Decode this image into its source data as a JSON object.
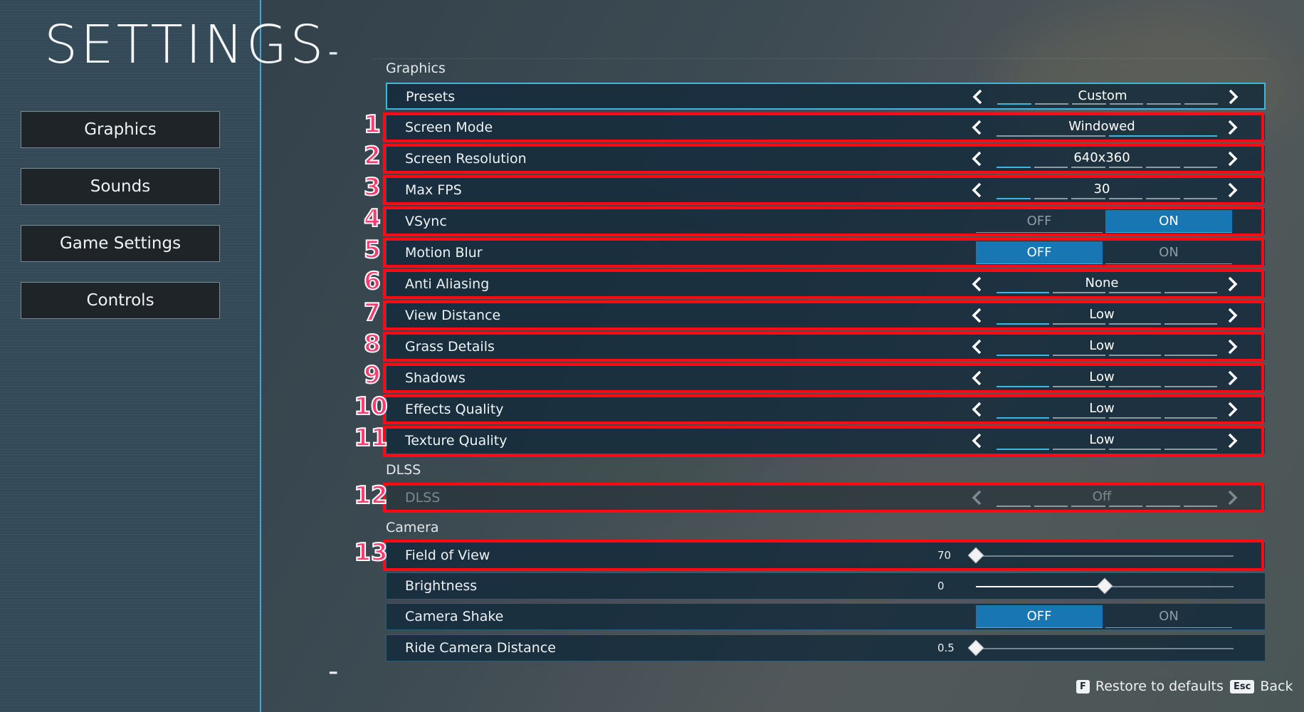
{
  "title": "SETTINGS",
  "dash": "-",
  "nav": [
    "Graphics",
    "Sounds",
    "Game Settings",
    "Controls"
  ],
  "sections": {
    "graphics": "Graphics",
    "dlss": "DLSS",
    "camera": "Camera"
  },
  "rows": {
    "presets": {
      "label": "Presets",
      "value": "Custom"
    },
    "screen_mode": {
      "label": "Screen Mode",
      "value": "Windowed"
    },
    "screen_resolution": {
      "label": "Screen Resolution",
      "value": "640x360"
    },
    "max_fps": {
      "label": "Max FPS",
      "value": "30"
    },
    "vsync": {
      "label": "VSync",
      "off": "OFF",
      "on": "ON",
      "state": "ON"
    },
    "motion_blur": {
      "label": "Motion Blur",
      "off": "OFF",
      "on": "ON",
      "state": "OFF"
    },
    "anti_aliasing": {
      "label": "Anti Aliasing",
      "value": "None"
    },
    "view_distance": {
      "label": "View Distance",
      "value": "Low"
    },
    "grass_details": {
      "label": "Grass Details",
      "value": "Low"
    },
    "shadows": {
      "label": "Shadows",
      "value": "Low"
    },
    "effects_quality": {
      "label": "Effects Quality",
      "value": "Low"
    },
    "texture_quality": {
      "label": "Texture Quality",
      "value": "Low"
    },
    "dlss": {
      "label": "DLSS",
      "value": "Off"
    },
    "field_of_view": {
      "label": "Field of View",
      "value": "70",
      "fraction": 0.0
    },
    "brightness": {
      "label": "Brightness",
      "value": "0",
      "fraction": 0.5
    },
    "camera_shake": {
      "label": "Camera Shake",
      "off": "OFF",
      "on": "ON",
      "state": "OFF"
    },
    "ride_camera_distance": {
      "label": "Ride Camera Distance",
      "value": "0.5",
      "fraction": 0.0
    }
  },
  "annotations": [
    "1",
    "2",
    "3",
    "4",
    "5",
    "6",
    "7",
    "8",
    "9",
    "10",
    "11",
    "12",
    "13"
  ],
  "footer": {
    "restore_key": "F",
    "restore_label": "Restore to defaults",
    "back_key": "Esc",
    "back_label": "Back"
  },
  "colors": {
    "accent": "#3fb6e0",
    "toggle_active": "#1877b2",
    "highlight": "#ff0a14",
    "annotation": "#ff3a6e"
  }
}
